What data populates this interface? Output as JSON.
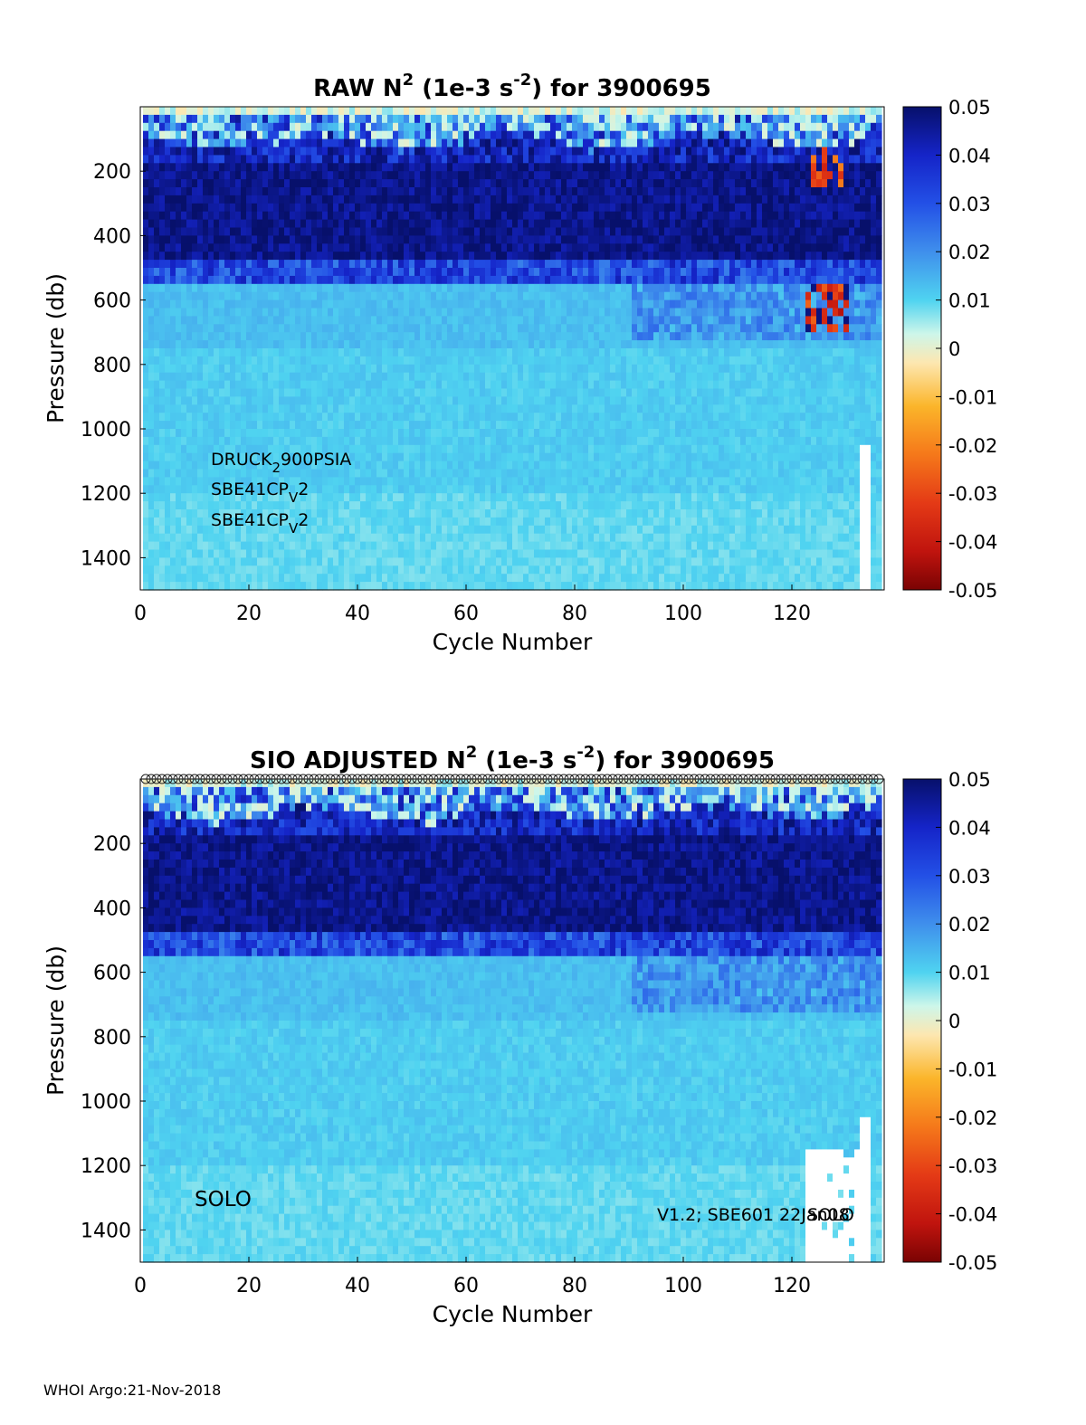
{
  "colors": {
    "deep": "#0b1470",
    "mid": "#1f3fd0",
    "light": "#7ec9ef",
    "pale": "#b9ecef",
    "neg": "#d43010"
  },
  "chart_data": [
    {
      "type": "heatmap",
      "title_prefix": "RAW N",
      "title_sup1": "2",
      "title_mid": " (1e-3 s",
      "title_sup2": "-2",
      "title_suffix": ") for 3900695",
      "xlabel": "Cycle Number",
      "ylabel": "Pressure (db)",
      "xlim": [
        0,
        137
      ],
      "ylim": [
        1500,
        0
      ],
      "xticks": [
        "0",
        "20",
        "40",
        "60",
        "80",
        "100",
        "120"
      ],
      "yticks": [
        "200",
        "400",
        "600",
        "800",
        "1000",
        "1200",
        "1400"
      ],
      "clim": [
        -0.05,
        0.05
      ],
      "cbar_ticks": [
        "0.05",
        "0.04",
        "0.03",
        "0.02",
        "0.01",
        "0",
        "-0.01",
        "-0.02",
        "-0.03",
        "-0.04",
        "-0.05"
      ],
      "annotations": {
        "line1_a": "DRUCK",
        "line1_sub": "2",
        "line1_b": "900PSIA",
        "line2_a": "SBE41CP",
        "line2_sub": "V",
        "line2_b": "2",
        "line3_a": "SBE41CP",
        "line3_sub": "V",
        "line3_b": "2"
      },
      "layers": [
        {
          "p": [
            0,
            150
          ],
          "level": "surface-mixed"
        },
        {
          "p": [
            150,
            500
          ],
          "value": 0.045
        },
        {
          "p": [
            500,
            700
          ],
          "value": 0.012
        },
        {
          "p": [
            700,
            1500
          ],
          "value": 0.008
        }
      ],
      "anomalies": [
        {
          "cycles": [
            123,
            130
          ],
          "p": [
            550,
            700
          ],
          "value": -0.035
        },
        {
          "cycles": [
            124,
            129
          ],
          "p": [
            120,
            250
          ],
          "value": -0.03
        }
      ]
    },
    {
      "type": "heatmap",
      "title_prefix": "SIO  ADJUSTED N",
      "title_sup1": "2",
      "title_mid": " (1e-3 s",
      "title_sup2": "-2",
      "title_suffix": ") for 3900695",
      "xlabel": "Cycle Number",
      "ylabel": "Pressure (db)",
      "xlim": [
        0,
        137
      ],
      "ylim": [
        1500,
        0
      ],
      "xticks": [
        "0",
        "20",
        "40",
        "60",
        "80",
        "100",
        "120"
      ],
      "yticks": [
        "200",
        "400",
        "600",
        "800",
        "1000",
        "1200",
        "1400"
      ],
      "clim": [
        -0.05,
        0.05
      ],
      "cbar_ticks": [
        "0.05",
        "0.04",
        "0.03",
        "0.02",
        "0.01",
        "0",
        "-0.01",
        "-0.02",
        "-0.03",
        "-0.04",
        "-0.05"
      ],
      "annotations": {
        "solo_left": "SOLO",
        "version": "V1.2; SBE601 22Jan08",
        "solo_right": "SOLO"
      },
      "marker_row": "circles at every cycle",
      "layers": [
        {
          "p": [
            0,
            150
          ],
          "level": "surface-mixed"
        },
        {
          "p": [
            150,
            500
          ],
          "value": 0.045
        },
        {
          "p": [
            500,
            700
          ],
          "value": 0.012
        },
        {
          "p": [
            700,
            1500
          ],
          "value": 0.008
        }
      ],
      "missing": [
        {
          "cycles": [
            123,
            132
          ],
          "p": [
            1150,
            1500
          ]
        }
      ]
    }
  ],
  "footer": "WHOI Argo:21-Nov-2018"
}
